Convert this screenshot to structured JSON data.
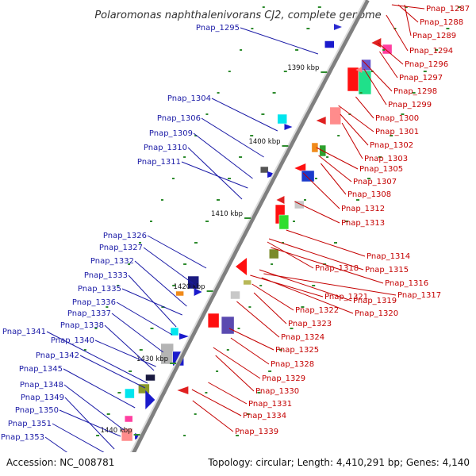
{
  "title": "Polaromonas naphthalenivorans CJ2, complete genome",
  "footer": {
    "accession": "Accession: NC_008781",
    "topology": "Topology: circular; Length: 4,410,291 bp; Genes: 4,140"
  },
  "colors": {
    "left_label": "#1a1aa6",
    "right_label": "#c40000",
    "backbone": "#808080",
    "tick": "#2e8b2e"
  },
  "scale_ticks": [
    "1390 kbp",
    "1400 kbp",
    "1410 kbp",
    "1420 kbp",
    "1430 kbp",
    "1440 kbp"
  ],
  "left_labels": [
    "Pnap_1295",
    "Pnap_1304",
    "Pnap_1306",
    "Pnap_1309",
    "Pnap_1310",
    "Pnap_1311",
    "Pnap_1326",
    "Pnap_1327",
    "Pnap_1332",
    "Pnap_1333",
    "Pnap_1335",
    "Pnap_1336",
    "Pnap_1337",
    "Pnap_1338",
    "Pnap_1341",
    "Pnap_1340",
    "Pnap_1342",
    "Pnap_1345",
    "Pnap_1348",
    "Pnap_1349",
    "Pnap_1350",
    "Pnap_1351",
    "Pnap_1353"
  ],
  "right_labels": [
    "Pnap_1287",
    "Pnap_1288",
    "Pnap_1289",
    "Pnap_1294",
    "Pnap_1296",
    "Pnap_1297",
    "Pnap_1298",
    "Pnap_1299",
    "Pnap_1300",
    "Pnap_1301",
    "Pnap_1302",
    "Pnap_1303",
    "Pnap_1305",
    "Pnap_1307",
    "Pnap_1308",
    "Pnap_1312",
    "Pnap_1313",
    "Pnap_1314",
    "Pnap_1315",
    "Pnap_1316",
    "Pnap_1317",
    "Pnap_1318",
    "Pnap_1319",
    "Pnap_1320",
    "Pnap_1321",
    "Pnap_1322",
    "Pnap_1323",
    "Pnap_1324",
    "Pnap_1325",
    "Pnap_1328",
    "Pnap_1329",
    "Pnap_1330",
    "Pnap_1331",
    "Pnap_1334",
    "Pnap_1339"
  ]
}
